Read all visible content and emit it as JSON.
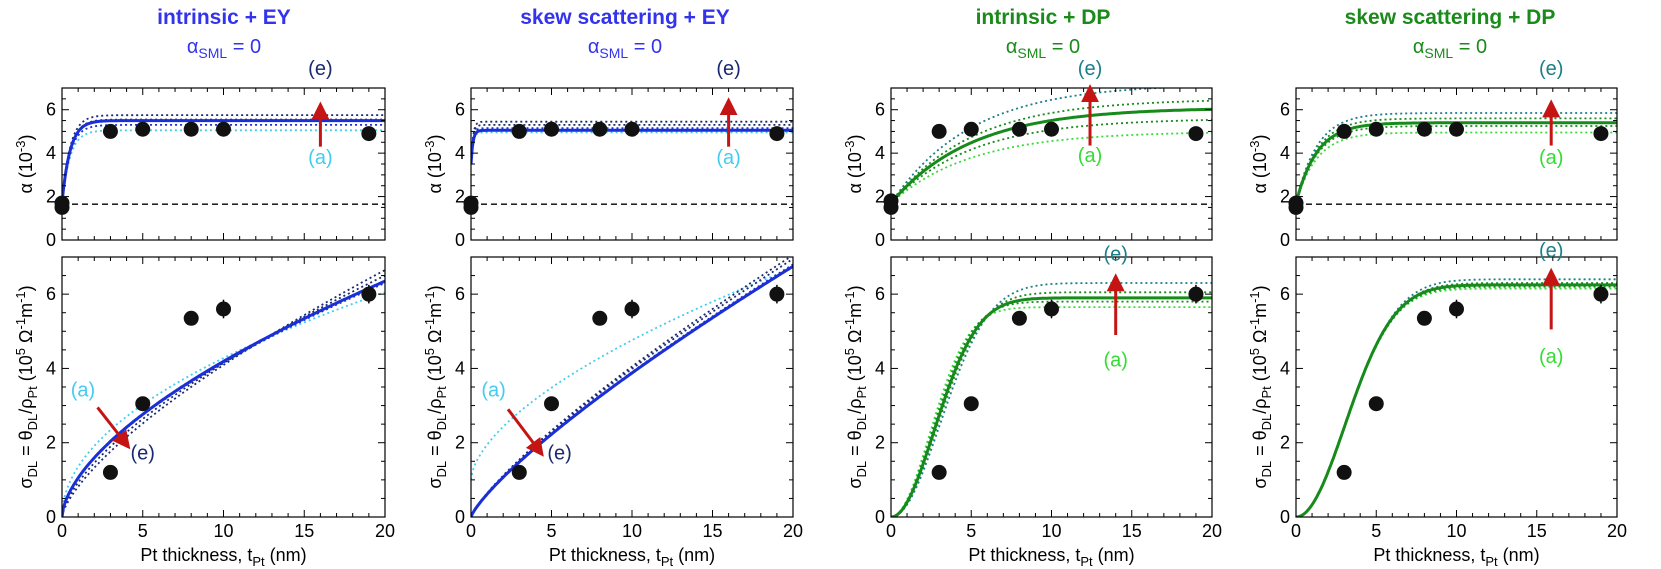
{
  "colors": {
    "blue_title": "#3333ee",
    "blue_line": "#1a2fd6",
    "blue_dark": "#1a2a70",
    "cyan": "#44ccf0",
    "green_title": "#1a8a1a",
    "green_line": "#168a1a",
    "teal": "#1a7f86",
    "light_green": "#33dd33",
    "arrow": "#c41414",
    "point": "#111111"
  },
  "panels": [
    {
      "title": "intrinsic + EY",
      "subtitle_prefix": "α",
      "subtitle_sub": "SML",
      "subtitle_suffix": " = 0",
      "family": "blue"
    },
    {
      "title": "skew scattering + EY",
      "subtitle_prefix": "α",
      "subtitle_sub": "SML",
      "subtitle_suffix": " = 0",
      "family": "blue"
    },
    {
      "title": "intrinsic + DP",
      "subtitle_prefix": "α",
      "subtitle_sub": "SML",
      "subtitle_suffix": " = 0",
      "family": "green"
    },
    {
      "title": "skew scattering + DP",
      "subtitle_prefix": "α",
      "subtitle_sub": "SML",
      "subtitle_suffix": " = 0",
      "family": "green"
    }
  ],
  "labels": {
    "annotation_start": "(a)",
    "annotation_end": "(e)",
    "top_ylabel": {
      "main": "α (10",
      "sup": "-3",
      "end": ")"
    },
    "bottom_ylabel": {
      "p1": "σ",
      "s1": "DL",
      "p2": " = θ",
      "s2": "DL",
      "p3": "/ρ",
      "s3": "Pt",
      "p4": " (10",
      "sup1": "5",
      "p5": " Ω",
      "sup2": "-1",
      "p6": "m",
      "sup3": "-1",
      "p7": ")"
    },
    "xlabel": {
      "main": "Pt thickness, t",
      "sub": "Pt",
      "end": " (nm)"
    }
  },
  "chart_data": [
    {
      "type": "scatter+line",
      "panel": "intrinsic + EY",
      "subplot": "top",
      "ylabel": "α (10^-3)",
      "xlim": [
        0,
        20
      ],
      "ylim": [
        0,
        7
      ],
      "xticks": [
        0,
        5,
        10,
        15,
        20
      ],
      "yticks": [
        0,
        2,
        4,
        6
      ],
      "points": [
        [
          0,
          1.5
        ],
        [
          0,
          1.7
        ],
        [
          3,
          5.0
        ],
        [
          5,
          5.1
        ],
        [
          8,
          5.1
        ],
        [
          10,
          5.1
        ],
        [
          19,
          4.9
        ]
      ],
      "reference_line": 1.65,
      "fit": {
        "kind": "sat",
        "A": 5.5,
        "t0": 0.5,
        "ys": 1.7
      },
      "variants": [
        {
          "label": "(a)",
          "kind": "sat",
          "A": 5.05,
          "t0": 0.5,
          "ys": 1.7,
          "tone": "light"
        },
        {
          "kind": "sat",
          "A": 5.3,
          "t0": 0.5,
          "ys": 1.7,
          "tone": "mid"
        },
        {
          "kind": "sat",
          "A": 5.55,
          "t0": 0.5,
          "ys": 1.7,
          "tone": "dark"
        },
        {
          "label": "(e)",
          "kind": "sat",
          "A": 5.75,
          "t0": 0.5,
          "ys": 1.7,
          "tone": "dark"
        }
      ],
      "annotations": {
        "arrow_x": 16,
        "arrow_from_y": 4.3,
        "arrow_to_y": 6.1,
        "start_label_y": 3.5,
        "end_label_x": 16,
        "end_label_y": 7.6
      }
    },
    {
      "type": "scatter+line",
      "panel": "intrinsic + EY",
      "subplot": "bottom",
      "ylabel": "σDL = θDL/ρPt (10^5 Ω^-1 m^-1)",
      "xlim": [
        0,
        20
      ],
      "ylim": [
        0,
        7
      ],
      "xticks": [
        0,
        5,
        10,
        15,
        20
      ],
      "yticks": [
        0,
        2,
        4,
        6
      ],
      "xlabel": "Pt thickness, tPt (nm)",
      "points": [
        [
          3,
          1.2
        ],
        [
          5,
          3.05
        ],
        [
          8,
          5.35
        ],
        [
          10,
          5.6
        ],
        [
          19,
          6.0
        ]
      ],
      "fit": {
        "kind": "pow",
        "A": 6.35,
        "p": 0.6
      },
      "variants": [
        {
          "label": "(a)",
          "kind": "pow",
          "A": 6.05,
          "p": 0.5,
          "tone": "light"
        },
        {
          "kind": "pow",
          "A": 6.3,
          "p": 0.6,
          "tone": "mid"
        },
        {
          "kind": "pow",
          "A": 6.5,
          "p": 0.65,
          "tone": "dark"
        },
        {
          "label": "(e)",
          "kind": "pow",
          "A": 6.65,
          "p": 0.7,
          "tone": "dark"
        }
      ],
      "annotations": {
        "arrow_x1": 2.2,
        "arrow_y1": 2.95,
        "arrow_x2": 4.0,
        "arrow_y2": 1.95,
        "start_label_x": 1.3,
        "start_label_y": 3.25,
        "end_label_x": 5.0,
        "end_label_y": 1.55
      }
    },
    {
      "type": "scatter+line",
      "panel": "skew scattering + EY",
      "subplot": "top",
      "ylabel": "α (10^-3)",
      "xlim": [
        0,
        20
      ],
      "ylim": [
        0,
        7
      ],
      "xticks": [
        0,
        5,
        10,
        15,
        20
      ],
      "yticks": [
        0,
        2,
        4,
        6
      ],
      "points": [
        [
          0,
          1.5
        ],
        [
          0,
          1.7
        ],
        [
          3,
          5.0
        ],
        [
          5,
          5.1
        ],
        [
          8,
          5.1
        ],
        [
          10,
          5.1
        ],
        [
          19,
          4.9
        ]
      ],
      "reference_line": 1.65,
      "fit": {
        "kind": "sat",
        "A": 5.05,
        "t0": 0.12,
        "ys": 3.5
      },
      "variants": [
        {
          "label": "(a)",
          "kind": "sat",
          "A": 4.95,
          "t0": 0.12,
          "ys": 3.5,
          "tone": "light"
        },
        {
          "kind": "sat",
          "A": 5.15,
          "t0": 0.12,
          "ys": 3.5,
          "tone": "mid"
        },
        {
          "kind": "sat",
          "A": 5.3,
          "t0": 0.12,
          "ys": 3.5,
          "tone": "dark"
        },
        {
          "label": "(e)",
          "kind": "sat",
          "A": 5.45,
          "t0": 0.12,
          "ys": 3.5,
          "tone": "dark"
        }
      ],
      "annotations": {
        "arrow_x": 16,
        "arrow_from_y": 4.3,
        "arrow_to_y": 6.3,
        "start_label_y": 3.5,
        "end_label_x": 16,
        "end_label_y": 7.6
      }
    },
    {
      "type": "scatter+line",
      "panel": "skew scattering + EY",
      "subplot": "bottom",
      "ylabel": "σDL = θDL/ρPt (10^5 Ω^-1 m^-1)",
      "xlim": [
        0,
        20
      ],
      "ylim": [
        0,
        7
      ],
      "xticks": [
        0,
        5,
        10,
        15,
        20
      ],
      "yticks": [
        0,
        2,
        4,
        6
      ],
      "xlabel": "Pt thickness, tPt (nm)",
      "points": [
        [
          3,
          1.2
        ],
        [
          5,
          3.05
        ],
        [
          8,
          5.35
        ],
        [
          10,
          5.6
        ],
        [
          19,
          6.0
        ]
      ],
      "fit": {
        "kind": "pow",
        "A": 6.75,
        "p": 0.8
      },
      "variants": [
        {
          "label": "(a)",
          "kind": "pow",
          "A": 6.7,
          "p": 0.6,
          "base": 1.0,
          "tone": "light"
        },
        {
          "kind": "pow",
          "A": 6.8,
          "p": 0.8,
          "tone": "mid"
        },
        {
          "kind": "pow",
          "A": 6.95,
          "p": 0.8,
          "tone": "dark"
        },
        {
          "label": "(e)",
          "kind": "pow",
          "A": 7.05,
          "p": 0.8,
          "tone": "dark"
        }
      ],
      "annotations": {
        "arrow_x1": 2.3,
        "arrow_y1": 2.9,
        "arrow_x2": 4.3,
        "arrow_y2": 1.75,
        "start_label_x": 1.4,
        "start_label_y": 3.25,
        "end_label_x": 5.5,
        "end_label_y": 1.55
      }
    },
    {
      "type": "scatter+line",
      "panel": "intrinsic + DP",
      "subplot": "top",
      "ylabel": "α (10^-3)",
      "xlim": [
        0,
        20
      ],
      "ylim": [
        0,
        7
      ],
      "xticks": [
        0,
        5,
        10,
        15,
        20
      ],
      "yticks": [
        0,
        2,
        4,
        6
      ],
      "points": [
        [
          0,
          1.5
        ],
        [
          0,
          1.8
        ],
        [
          3,
          5.0
        ],
        [
          5,
          5.1
        ],
        [
          8,
          5.1
        ],
        [
          10,
          5.1
        ],
        [
          19,
          4.9
        ]
      ],
      "reference_line": 1.65,
      "fit": {
        "kind": "sat",
        "A": 6.1,
        "t0": 5.0,
        "ys": 1.7
      },
      "variants": [
        {
          "label": "(a)",
          "kind": "sat",
          "A": 5.0,
          "t0": 5.0,
          "ys": 1.7,
          "tone": "light"
        },
        {
          "kind": "sat",
          "A": 5.6,
          "t0": 5.0,
          "ys": 1.7,
          "tone": "mid"
        },
        {
          "kind": "sat",
          "A": 6.5,
          "t0": 5.0,
          "ys": 1.7,
          "tone": "mid"
        },
        {
          "label": "(e)",
          "kind": "sat",
          "A": 7.2,
          "t0": 5.0,
          "ys": 1.7,
          "tone": "dark"
        }
      ],
      "annotations": {
        "arrow_x": 12.4,
        "arrow_from_y": 4.35,
        "arrow_to_y": 6.9,
        "start_label_y": 3.6,
        "end_label_x": 12.4,
        "end_label_y": 7.6
      }
    },
    {
      "type": "scatter+line",
      "panel": "intrinsic + DP",
      "subplot": "bottom",
      "ylabel": "σDL = θDL/ρPt (10^5 Ω^-1 m^-1)",
      "xlim": [
        0,
        20
      ],
      "ylim": [
        0,
        7
      ],
      "xticks": [
        0,
        5,
        10,
        15,
        20
      ],
      "yticks": [
        0,
        2,
        4,
        6
      ],
      "xlabel": "Pt thickness, tPt (nm)",
      "points": [
        [
          3,
          1.2
        ],
        [
          5,
          3.05
        ],
        [
          8,
          5.35
        ],
        [
          10,
          5.6
        ],
        [
          19,
          6.0
        ]
      ],
      "fit": {
        "kind": "sig",
        "A": 5.9,
        "t0": 3.8,
        "n": 2.0
      },
      "variants": [
        {
          "label": "(a)",
          "kind": "sig",
          "A": 5.65,
          "t0": 3.4,
          "n": 2.0,
          "tone": "light"
        },
        {
          "kind": "sig",
          "A": 5.8,
          "t0": 3.6,
          "n": 2.0,
          "tone": "mid"
        },
        {
          "kind": "sig",
          "A": 6.05,
          "t0": 4.0,
          "n": 2.0,
          "tone": "mid"
        },
        {
          "label": "(e)",
          "kind": "sig",
          "A": 6.3,
          "t0": 4.3,
          "n": 2.0,
          "tone": "dark"
        }
      ],
      "annotations": {
        "arrow_x": 14.0,
        "arrow_from_y": 4.9,
        "arrow_to_y": 6.4,
        "start_label_x": 14.0,
        "start_label_y": 4.05,
        "end_label_x": 14.0,
        "end_label_y": 6.9
      }
    },
    {
      "type": "scatter+line",
      "panel": "skew scattering + DP",
      "subplot": "top",
      "ylabel": "α (10^-3)",
      "xlim": [
        0,
        20
      ],
      "ylim": [
        0,
        7
      ],
      "xticks": [
        0,
        5,
        10,
        15,
        20
      ],
      "yticks": [
        0,
        2,
        4,
        6
      ],
      "points": [
        [
          0,
          1.5
        ],
        [
          0,
          1.7
        ],
        [
          3,
          5.0
        ],
        [
          5,
          5.1
        ],
        [
          8,
          5.1
        ],
        [
          10,
          5.1
        ],
        [
          19,
          4.9
        ]
      ],
      "reference_line": 1.65,
      "fit": {
        "kind": "sat",
        "A": 5.4,
        "t0": 1.3,
        "ys": 1.7
      },
      "variants": [
        {
          "label": "(a)",
          "kind": "sat",
          "A": 4.95,
          "t0": 1.3,
          "ys": 1.7,
          "tone": "light"
        },
        {
          "kind": "sat",
          "A": 5.25,
          "t0": 1.3,
          "ys": 1.7,
          "tone": "mid"
        },
        {
          "kind": "sat",
          "A": 5.6,
          "t0": 1.3,
          "ys": 1.7,
          "tone": "mid"
        },
        {
          "label": "(e)",
          "kind": "sat",
          "A": 5.85,
          "t0": 1.3,
          "ys": 1.7,
          "tone": "dark"
        }
      ],
      "annotations": {
        "arrow_x": 15.9,
        "arrow_from_y": 4.35,
        "arrow_to_y": 6.2,
        "start_label_y": 3.5,
        "end_label_x": 15.9,
        "end_label_y": 7.6
      }
    },
    {
      "type": "scatter+line",
      "panel": "skew scattering + DP",
      "subplot": "bottom",
      "ylabel": "σDL = θDL/ρPt (10^5 Ω^-1 m^-1)",
      "xlim": [
        0,
        20
      ],
      "ylim": [
        0,
        7
      ],
      "xticks": [
        0,
        5,
        10,
        15,
        20
      ],
      "yticks": [
        0,
        2,
        4,
        6
      ],
      "xlabel": "Pt thickness, tPt (nm)",
      "points": [
        [
          3,
          1.2
        ],
        [
          5,
          3.05
        ],
        [
          8,
          5.35
        ],
        [
          10,
          5.6
        ],
        [
          19,
          6.0
        ]
      ],
      "fit": {
        "kind": "sig",
        "A": 6.25,
        "t0": 4.3,
        "n": 2.0
      },
      "variants": [
        {
          "label": "(a)",
          "kind": "sig",
          "A": 6.15,
          "t0": 4.25,
          "n": 2.0,
          "tone": "light"
        },
        {
          "kind": "sig",
          "A": 6.2,
          "t0": 4.3,
          "n": 2.0,
          "tone": "mid"
        },
        {
          "kind": "sig",
          "A": 6.3,
          "t0": 4.35,
          "n": 2.0,
          "tone": "mid"
        },
        {
          "label": "(e)",
          "kind": "sig",
          "A": 6.4,
          "t0": 4.4,
          "n": 2.0,
          "tone": "dark"
        }
      ],
      "annotations": {
        "arrow_x": 15.9,
        "arrow_from_y": 5.05,
        "arrow_to_y": 6.55,
        "start_label_x": 15.9,
        "start_label_y": 4.15,
        "end_label_x": 15.9,
        "end_label_y": 7.0
      }
    }
  ]
}
